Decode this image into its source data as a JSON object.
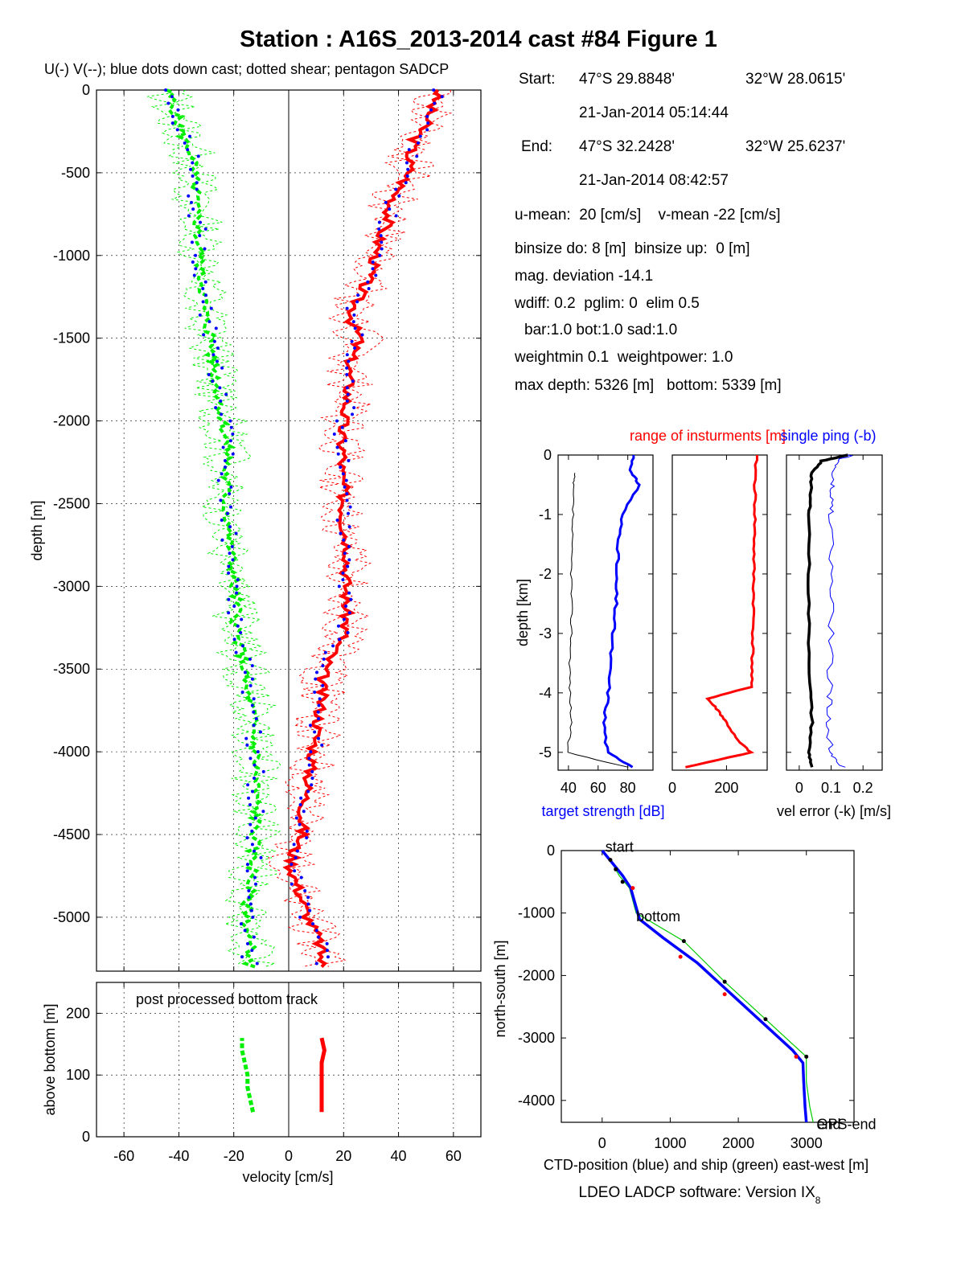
{
  "title": "Station : A16S_2013-2014 cast #84  Figure 1",
  "subtitle": "U(-) V(--); blue dots down cast; dotted shear; pentagon SADCP",
  "info": {
    "start_label": "Start:",
    "start_lat": "47°S 29.8848'",
    "start_lon": "32°W 28.0615'",
    "start_time": "21-Jan-2014 05:14:44",
    "end_label": "End:",
    "end_lat": "47°S 32.2428'",
    "end_lon": "32°W 25.6237'",
    "end_time": "21-Jan-2014 08:42:57",
    "means": "u-mean:  20 [cm/s]    v-mean -22 [cm/s]",
    "binsize": "binsize do: 8 [m]  binsize up:  0 [m]",
    "magdev": "mag. deviation -14.1",
    "wdiff": "wdiff: 0.2  pglim: 0  elim 0.5",
    "bar": "bar:1.0 bot:1.0 sad:1.0",
    "weight": "weightmin 0.1  weightpower: 1.0",
    "depths": "max depth: 5326 [m]   bottom: 5339 [m]"
  },
  "footer": "LDEO LADCP software: Version IX",
  "footer_sub": "8",
  "chart_data": [
    {
      "type": "line",
      "name": "velocity-profile",
      "xlabel": "velocity [cm/s]",
      "ylabel": "depth [m]",
      "xlim": [
        -70,
        70
      ],
      "ylim": [
        -5326,
        0
      ],
      "xticks": [
        "-60",
        "-40",
        "-20",
        "0",
        "20",
        "40",
        "60"
      ],
      "yticks": [
        "0",
        "-500",
        "-1000",
        "-1500",
        "-2000",
        "-2500",
        "-3000",
        "-3500",
        "-4000",
        "-4500",
        "-5000"
      ],
      "grid": true,
      "colors": {
        "u": "#ff0000",
        "v": "#00ee00",
        "dots": "#0000ff"
      },
      "depth": [
        0,
        -100,
        -200,
        -300,
        -400,
        -500,
        -600,
        -700,
        -800,
        -900,
        -1000,
        -1100,
        -1200,
        -1300,
        -1400,
        -1500,
        -1600,
        -1700,
        -1800,
        -1900,
        -2000,
        -2100,
        -2200,
        -2300,
        -2400,
        -2500,
        -2600,
        -2700,
        -2800,
        -2900,
        -3000,
        -3100,
        -3200,
        -3300,
        -3400,
        -3500,
        -3600,
        -3700,
        -3800,
        -3900,
        -4000,
        -4100,
        -4200,
        -4300,
        -4400,
        -4500,
        -4600,
        -4700,
        -4800,
        -4900,
        -5000,
        -5100,
        -5200,
        -5300
      ],
      "series": [
        {
          "values": [
            55,
            52,
            50,
            46,
            44,
            44,
            40,
            37,
            36,
            33,
            32,
            30,
            27,
            24,
            23,
            26,
            23,
            22,
            22,
            21,
            20,
            19,
            20,
            19,
            20,
            20,
            20,
            21,
            22,
            21,
            21,
            21,
            21,
            20,
            16,
            13,
            12,
            12,
            11,
            10,
            9,
            8,
            7,
            6,
            5,
            5,
            2,
            1,
            3,
            5,
            7,
            10,
            12,
            12
          ]
        },
        {
          "values": [
            -44,
            -42,
            -40,
            -38,
            -35,
            -35,
            -34,
            -34,
            -33,
            -33,
            -32,
            -32,
            -31,
            -31,
            -30,
            -28,
            -28,
            -27,
            -26,
            -25,
            -24,
            -23,
            -22,
            -23,
            -23,
            -23,
            -22,
            -22,
            -21,
            -20,
            -20,
            -19,
            -19,
            -19,
            -17,
            -16,
            -16,
            -14,
            -13,
            -13,
            -12,
            -12,
            -12,
            -12,
            -12,
            -12,
            -13,
            -13,
            -14,
            -15,
            -15,
            -15,
            -14,
            -14
          ]
        }
      ]
    },
    {
      "type": "line",
      "name": "post-processed-bottom-track",
      "annotation": "post processed bottom track",
      "xlabel": "",
      "ylabel": "above bottom [m]",
      "xlim": [
        -70,
        70
      ],
      "ylim": [
        0,
        250
      ],
      "yticks": [
        "0",
        "100",
        "200"
      ],
      "height_above_bottom": [
        40,
        60,
        80,
        100,
        120,
        140,
        160
      ],
      "series": [
        {
          "values": [
            12,
            12,
            12,
            12,
            12,
            13,
            12
          ]
        },
        {
          "values": [
            -13,
            -14,
            -15,
            -15,
            -16,
            -17,
            -17
          ]
        }
      ]
    },
    {
      "type": "line",
      "name": "target-strength",
      "xlabel": "target strength [dB]",
      "ylabel": "depth [km]",
      "xlim": [
        33,
        97
      ],
      "ylim": [
        -5.3,
        0
      ],
      "xticks": [
        "40",
        "60",
        "80"
      ],
      "yticks": [
        "0",
        "-1",
        "-2",
        "-3",
        "-4",
        "-5"
      ],
      "depth_km": [
        0,
        -0.3,
        -0.5,
        -1.0,
        -1.5,
        -2.0,
        -2.5,
        -3.0,
        -3.5,
        -4.0,
        -4.5,
        -5.0,
        -5.25
      ],
      "series": [
        {
          "values": [
            84,
            82,
            88,
            76,
            74,
            72,
            72,
            70,
            68,
            67,
            64,
            66,
            84
          ]
        },
        {
          "values": [
            null,
            44,
            43,
            43,
            42,
            42,
            42,
            42,
            41,
            41,
            42,
            39,
            80
          ]
        }
      ]
    },
    {
      "type": "line",
      "name": "range-of-instruments",
      "title": "range of insturments [m]",
      "xlim": [
        0,
        350
      ],
      "ylim": [
        -5.3,
        0
      ],
      "xticks": [
        "0",
        "200"
      ],
      "depth_km": [
        0,
        -0.5,
        -1.0,
        -1.5,
        -2.0,
        -2.5,
        -3.0,
        -3.5,
        -3.9,
        -4.1,
        -4.3,
        -4.5,
        -4.8,
        -5.0,
        -5.25
      ],
      "series": [
        {
          "values": [
            310,
            305,
            305,
            302,
            300,
            300,
            298,
            295,
            290,
            130,
            170,
            200,
            240,
            290,
            50
          ]
        }
      ]
    },
    {
      "type": "line",
      "name": "velocity-error",
      "title": "single ping (-b)",
      "xlabel": "vel error (-k) [m/s]",
      "xlim": [
        -0.04,
        0.26
      ],
      "ylim": [
        -5.3,
        0
      ],
      "xticks": [
        "0",
        "0.1",
        "0.2"
      ],
      "depth_km": [
        0,
        -0.1,
        -0.3,
        -0.6,
        -1.0,
        -2.0,
        -3.0,
        -4.0,
        -4.5,
        -5.0,
        -5.25
      ],
      "series": [
        {
          "values": [
            0.15,
            0.07,
            0.04,
            0.035,
            0.032,
            0.03,
            0.03,
            0.035,
            0.04,
            0.03,
            0.04
          ]
        },
        {
          "values": [
            0.16,
            0.12,
            0.105,
            0.1,
            0.1,
            0.1,
            0.1,
            0.095,
            0.09,
            0.1,
            0.14
          ]
        }
      ]
    },
    {
      "type": "line",
      "name": "ctd-position",
      "xlabel": "CTD-position (blue) and ship (green) east-west [m]",
      "ylabel": "north-south [m]",
      "xlim": [
        -600,
        3700
      ],
      "ylim": [
        -4350,
        0
      ],
      "xticks": [
        "0",
        "1000",
        "2000",
        "3000"
      ],
      "yticks": [
        "0",
        "-1000",
        "-2000",
        "-3000",
        "-4000"
      ],
      "labels": [
        "start",
        "bottom",
        "GPS-end",
        "end"
      ],
      "series": [
        {
          "x": [
            0,
            150,
            300,
            420,
            550,
            900,
            1400,
            1900,
            2400,
            2800,
            2950,
            2960,
            2980,
            3000
          ],
          "y": [
            0,
            -200,
            -400,
            -600,
            -1100,
            -1400,
            -1800,
            -2300,
            -2800,
            -3200,
            -3400,
            -3700,
            -4100,
            -4350
          ]
        },
        {
          "x": [
            0,
            120,
            250,
            400,
            500,
            1200,
            1800,
            2400,
            2800,
            3000,
            3000,
            3050,
            3100
          ],
          "y": [
            0,
            -150,
            -400,
            -600,
            -1000,
            -1450,
            -2100,
            -2700,
            -3100,
            -3300,
            -3700,
            -4100,
            -4350
          ]
        }
      ]
    }
  ]
}
